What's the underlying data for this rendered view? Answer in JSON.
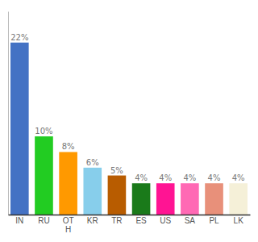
{
  "chart_data": {
    "type": "bar",
    "categories": [
      "IN",
      "RU",
      "OT\nH",
      "KR",
      "TR",
      "ES",
      "US",
      "SA",
      "PL",
      "LK"
    ],
    "values": [
      22,
      10,
      8,
      6,
      5,
      4,
      4,
      4,
      4,
      4
    ],
    "value_labels": [
      "22%",
      "10%",
      "8%",
      "6%",
      "5%",
      "4%",
      "4%",
      "4%",
      "4%",
      "4%"
    ],
    "colors": [
      "#4472c4",
      "#22cc22",
      "#ff9900",
      "#87ceeb",
      "#b85c00",
      "#1a7a1a",
      "#ff1493",
      "#ff69b4",
      "#e8907a",
      "#f5f0d8"
    ],
    "ylim": [
      0,
      26
    ],
    "data_labels": true,
    "tick_labels": "x",
    "grid": false
  }
}
